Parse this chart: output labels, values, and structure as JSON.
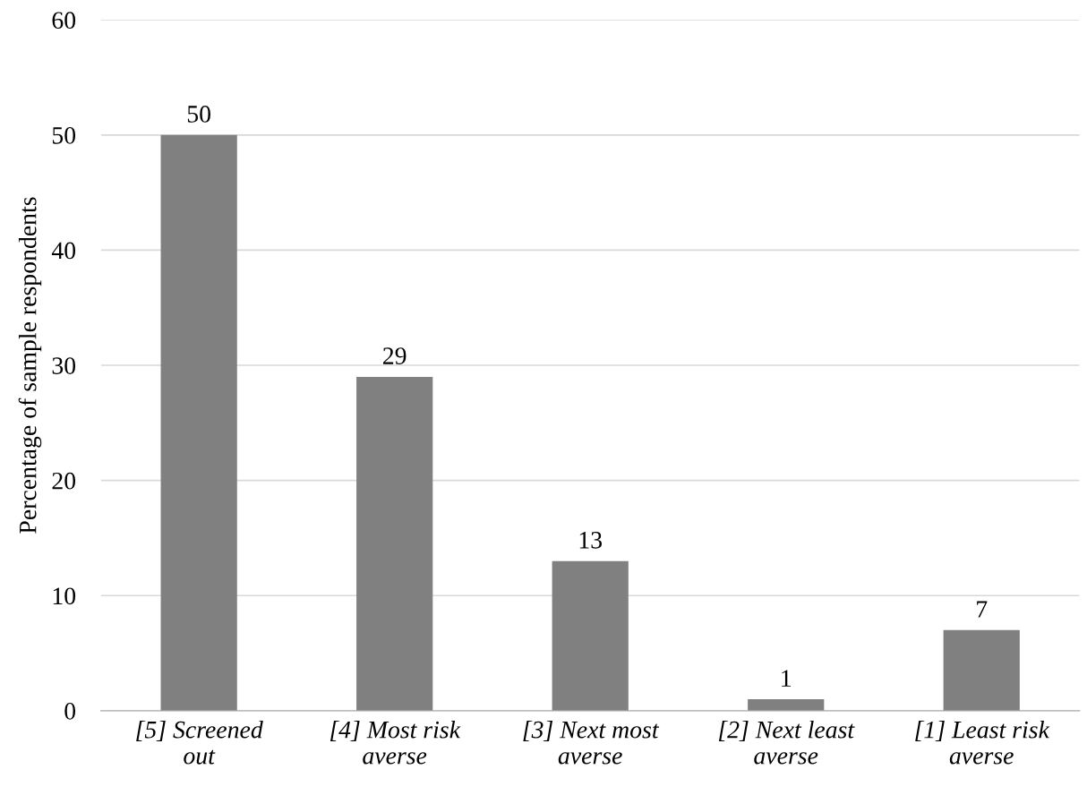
{
  "chart_data": {
    "type": "bar",
    "ylabel": "Percentage of sample respondents",
    "categories": [
      "[5] Screened out",
      "[4] Most risk averse",
      "[3] Next most averse",
      "[2] Next least averse",
      "[1] Least risk averse"
    ],
    "values": [
      50,
      29,
      13,
      1,
      7
    ],
    "color": "#808080",
    "ylim": [
      0,
      60
    ],
    "yticks": [
      0,
      10,
      20,
      30,
      40,
      50,
      60
    ],
    "grid": "y",
    "data_labels": true
  }
}
